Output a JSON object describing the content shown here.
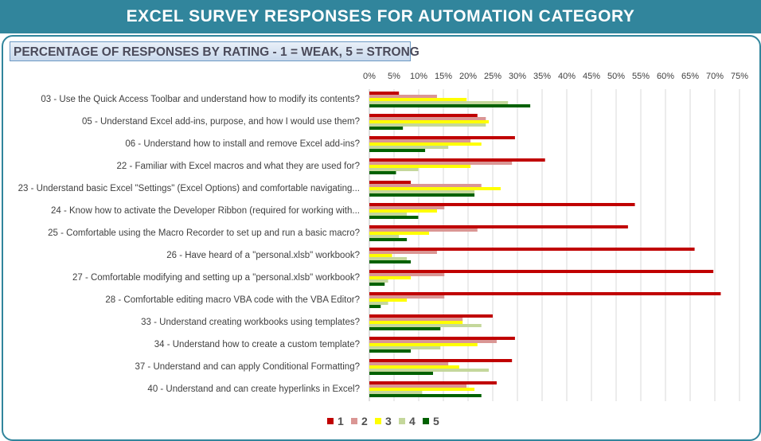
{
  "header": {
    "title": "EXCEL SURVEY  RESPONSES  FOR  AUTOMATION  CATEGORY"
  },
  "chart_data": {
    "type": "bar",
    "orientation": "horizontal",
    "title": "PERCENTAGE OF RESPONSES BY RATING - 1 = WEAK, 5 = STRONG",
    "xlim": [
      0,
      75
    ],
    "x_ticks": [
      "0%",
      "5%",
      "10%",
      "15%",
      "20%",
      "25%",
      "30%",
      "35%",
      "40%",
      "45%",
      "50%",
      "55%",
      "60%",
      "65%",
      "70%",
      "75%"
    ],
    "grid": true,
    "legend_position": "bottom",
    "categories": [
      "03 - Use the Quick Access Toolbar and understand how to modify its contents?",
      "05 - Understand Excel add-ins, purpose, and how I would use them?",
      "06 - Understand how to install and remove Excel add-ins?",
      "22 - Familiar with Excel macros and what they are used for?",
      "23 - Understand basic Excel \"Settings\" (Excel Options) and comfortable navigating...",
      "24 - Know how to activate the Developer Ribbon (required for working with...",
      "25 - Comfortable using the Macro Recorder to set up and run a basic macro?",
      "26 - Have heard of a \"personal.xlsb\" workbook?",
      "27 - Comfortable modifying and setting up a \"personal.xlsb\" workbook?",
      "28 - Comfortable editing macro VBA code with the VBA Editor?",
      "33 - Understand creating workbooks using templates?",
      "34 - Understand how to create a custom template?",
      "37 - Understand and can apply Conditional Formatting?",
      "40 - Understand and can create hyperlinks in Excel?"
    ],
    "series": [
      {
        "name": "1",
        "color": "#C00000",
        "values": [
          6.0,
          21.9,
          29.5,
          35.6,
          8.4,
          53.8,
          52.4,
          65.9,
          69.7,
          71.2,
          25.0,
          29.5,
          28.9,
          25.8
        ]
      },
      {
        "name": "2",
        "color": "#DA9694",
        "values": [
          13.7,
          23.6,
          20.5,
          28.9,
          22.7,
          15.2,
          21.9,
          13.7,
          15.2,
          15.2,
          18.9,
          25.8,
          16.0,
          19.7
        ]
      },
      {
        "name": "3",
        "color": "#FFFF00",
        "values": [
          19.7,
          24.2,
          22.7,
          20.5,
          26.6,
          13.7,
          12.1,
          4.6,
          8.4,
          7.6,
          18.9,
          21.9,
          18.2,
          21.3
        ]
      },
      {
        "name": "4",
        "color": "#C4D79B",
        "values": [
          28.1,
          23.6,
          16.0,
          9.9,
          21.3,
          7.6,
          6.0,
          7.6,
          3.8,
          3.8,
          22.7,
          14.4,
          24.2,
          10.7
        ]
      },
      {
        "name": "5",
        "color": "#006100",
        "values": [
          32.6,
          6.8,
          11.3,
          5.4,
          21.3,
          9.9,
          7.6,
          8.4,
          3.1,
          2.3,
          14.4,
          8.4,
          12.9,
          22.7
        ]
      }
    ]
  }
}
